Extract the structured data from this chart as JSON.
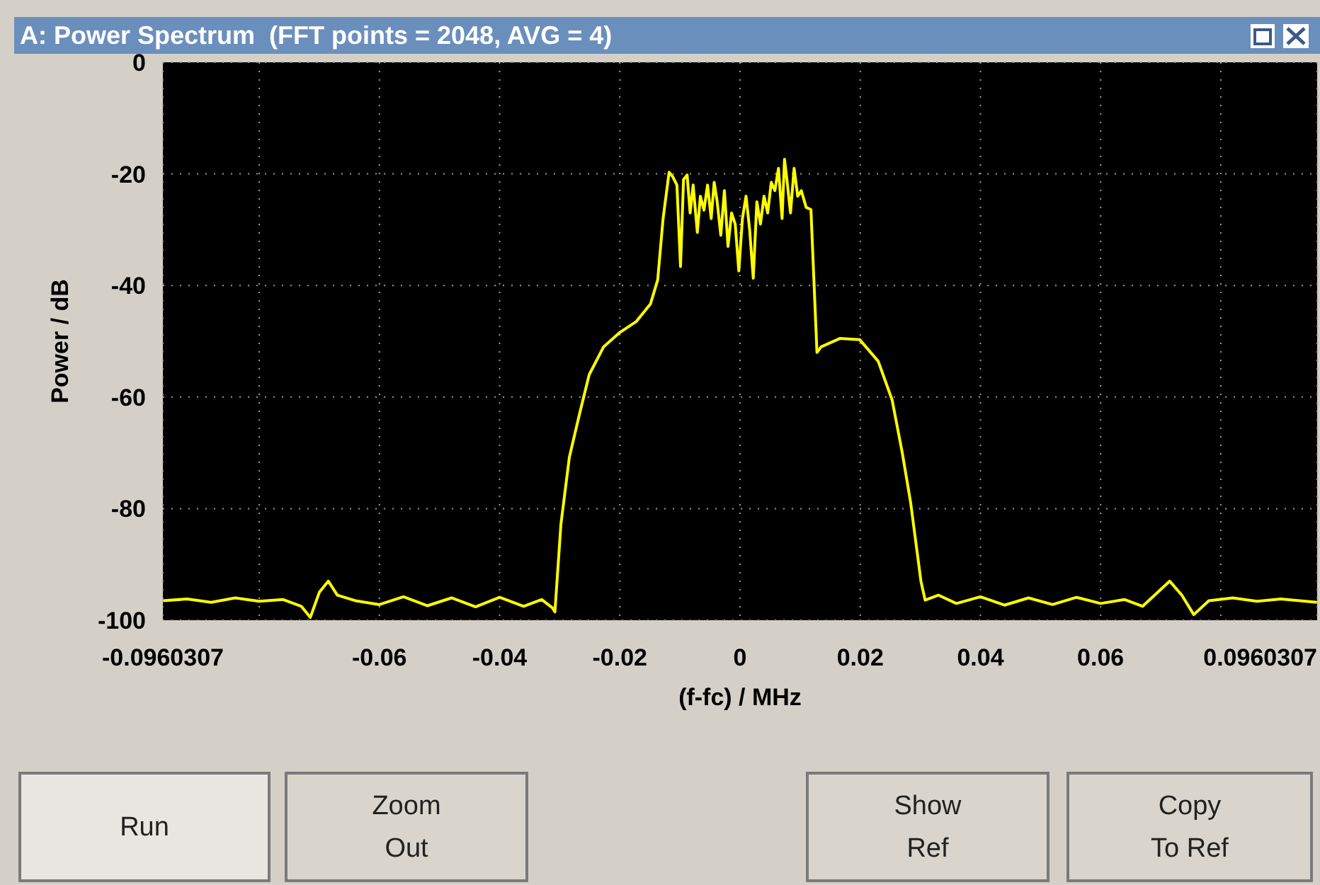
{
  "chart_data": {
    "type": "line",
    "title": "A: Power Spectrum  (FFT points = 2048, AVG = 4)",
    "xlabel": "(f-fc) / MHz",
    "ylabel": "Power / dB",
    "xlim": [
      -0.0960307,
      0.0960307
    ],
    "xticks": [
      -0.0960307,
      {
        "value": -0.08,
        "label": null
      },
      -0.06,
      -0.04,
      -0.02,
      0,
      0.02,
      0.04,
      0.06,
      {
        "value": 0.08,
        "label": null
      },
      0.0960307
    ],
    "ylim": [
      -100,
      0
    ],
    "yticks": [
      -100,
      -80,
      -60,
      -40,
      -20,
      0
    ],
    "grid": true,
    "marker": "none",
    "line_style": "solid",
    "annotations": [
      "Run",
      "Zoom\nOut",
      "Show\nRef",
      "Copy\nTo Ref"
    ],
    "series": [
      {
        "color": "#ffff00",
        "x": [
          -0.096,
          -0.092,
          -0.088,
          -0.084,
          -0.08,
          -0.076,
          -0.073,
          -0.0715,
          -0.07,
          -0.0685,
          -0.067,
          -0.064,
          -0.06,
          -0.056,
          -0.052,
          -0.048,
          -0.044,
          -0.04,
          -0.036,
          -0.033,
          -0.0312,
          -0.0308,
          -0.0298,
          -0.0284,
          -0.0267,
          -0.0251,
          -0.0227,
          -0.0201,
          -0.0173,
          -0.0149,
          -0.0137,
          -0.0128,
          -0.0118,
          -0.0112,
          -0.0105,
          -0.0099,
          -0.0094,
          -0.0088,
          -0.0083,
          -0.0078,
          -0.0071,
          -0.0066,
          -0.006,
          -0.0054,
          -0.0048,
          -0.0043,
          -0.0038,
          -0.0032,
          -0.0026,
          -0.002,
          -0.0014,
          -0.0008,
          -0.0002,
          0.0004,
          0.001,
          0.0016,
          0.0022,
          0.0028,
          0.0034,
          0.004,
          0.0046,
          0.0052,
          0.0058,
          0.0064,
          0.007,
          0.0074,
          0.0078,
          0.0084,
          0.009,
          0.0096,
          0.0102,
          0.011,
          0.0118,
          0.0128,
          0.0135,
          0.0166,
          0.0199,
          0.023,
          0.0253,
          0.027,
          0.0284,
          0.0301,
          0.0308,
          0.033,
          0.036,
          0.04,
          0.044,
          0.048,
          0.052,
          0.056,
          0.06,
          0.064,
          0.067,
          0.069,
          0.0715,
          0.0735,
          0.0755,
          0.078,
          0.082,
          0.086,
          0.09,
          0.096
        ],
        "values": [
          -96.5,
          -96.2,
          -96.8,
          -96,
          -96.6,
          -96.3,
          -97.5,
          -99.5,
          -95,
          -93,
          -95.5,
          -96.5,
          -97.2,
          -95.8,
          -97.4,
          -96,
          -97.6,
          -95.9,
          -97.5,
          -96.3,
          -97.8,
          -98.5,
          -82.8,
          -70.8,
          -63,
          -56,
          -51,
          -48.5,
          -46.5,
          -43.3,
          -39,
          -28,
          -19.7,
          -20.5,
          -22,
          -36.6,
          -21,
          -20.2,
          -27,
          -22,
          -30.5,
          -24,
          -26.5,
          -22,
          -28,
          -21.5,
          -25,
          -31,
          -23,
          -33,
          -27,
          -29,
          -37.4,
          -28,
          -24,
          -30,
          -38.7,
          -25,
          -29,
          -24,
          -27,
          -21.5,
          -23,
          -19,
          -28,
          -17.4,
          -21,
          -27,
          -19,
          -24,
          -23,
          -26,
          -26.4,
          -52,
          -51,
          -49.5,
          -49.7,
          -53.6,
          -60.5,
          -70,
          -79,
          -93,
          -96.4,
          -95.5,
          -97,
          -95.8,
          -97.3,
          -96,
          -97.2,
          -95.9,
          -97,
          -96.3,
          -97.5,
          -95.5,
          -93,
          -95.5,
          -99,
          -96.5,
          -96,
          -96.6,
          -96.2,
          -96.8
        ]
      }
    ]
  }
}
